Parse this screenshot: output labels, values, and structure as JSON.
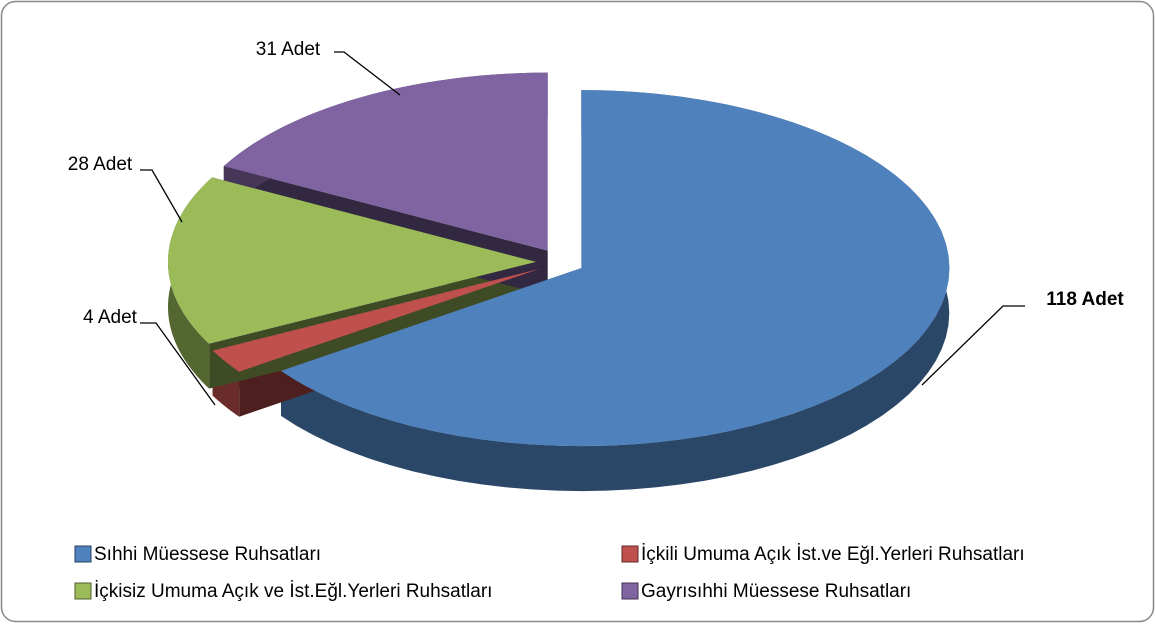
{
  "chart_data": {
    "type": "pie",
    "categories": [
      "Sıhhi Müessese Ruhsatları",
      "İçkili Umuma Açık İst.ve Eğl.Yerleri Ruhsatları",
      "İçkisiz Umuma Açık ve İst.Eğl.Yerleri Ruhsatları",
      "Gayrısıhhi Müessese Ruhsatları"
    ],
    "values": [
      118,
      4,
      28,
      31
    ],
    "value_labels": [
      "118 Adet",
      "4 Adet",
      "28 Adet",
      "31 Adet"
    ],
    "colors": [
      "#4f81bd",
      "#c0504d",
      "#9bbb59",
      "#8064a2"
    ]
  }
}
